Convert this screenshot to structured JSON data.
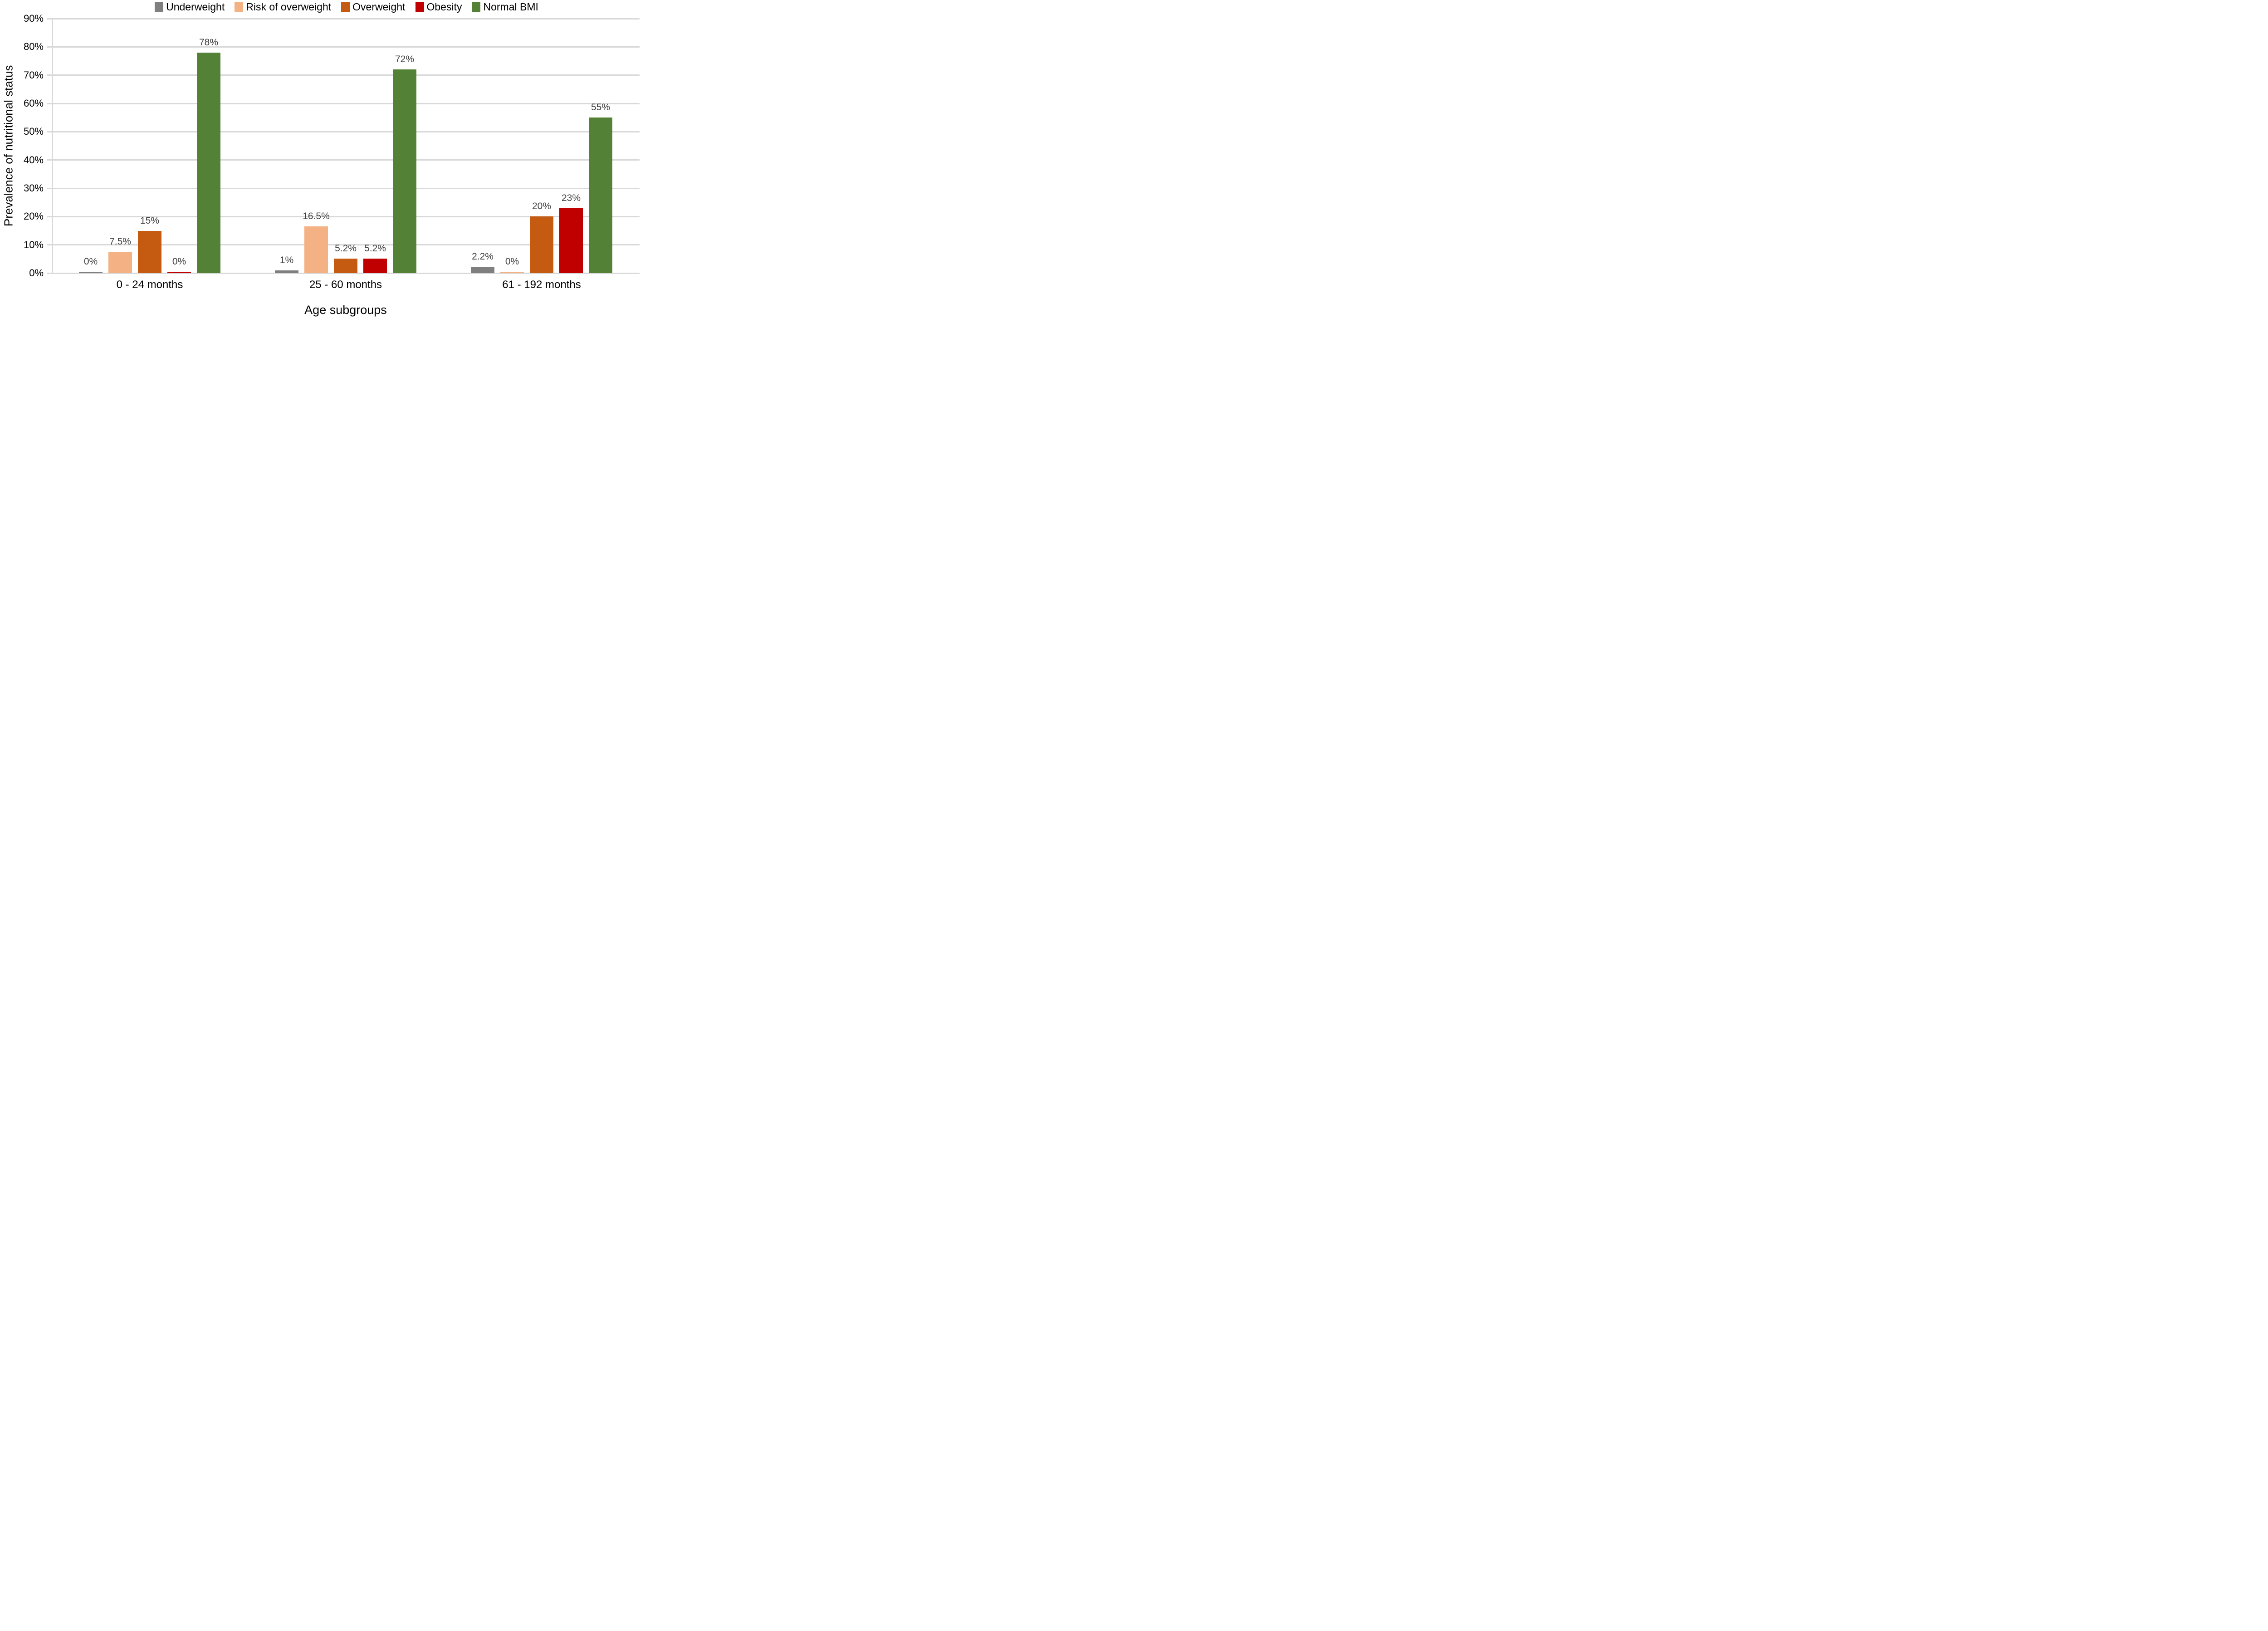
{
  "chart_data": {
    "type": "bar",
    "title": "",
    "xlabel": "Age subgroups",
    "ylabel": "Prevalence of nutritional status",
    "categories": [
      "0 - 24 months",
      "25 - 60 months",
      "61 - 192 months"
    ],
    "series": [
      {
        "name": "Underweight",
        "color": "#7f7f7f",
        "values": [
          0,
          1,
          2.2
        ],
        "labels": [
          "0%",
          "1%",
          "2.2%"
        ]
      },
      {
        "name": "Risk of overweight",
        "color": "#f4b183",
        "values": [
          7.5,
          16.5,
          0
        ],
        "labels": [
          "7.5%",
          "16.5%",
          "0%"
        ]
      },
      {
        "name": "Overweight",
        "color": "#c55a11",
        "values": [
          15,
          5.2,
          20
        ],
        "labels": [
          "15%",
          "5.2%",
          "20%"
        ]
      },
      {
        "name": "Obesity",
        "color": "#c00000",
        "values": [
          0,
          5.2,
          23
        ],
        "labels": [
          "0%",
          "5.2%",
          "23%"
        ]
      },
      {
        "name": "Normal BMI",
        "color": "#538135",
        "values": [
          78,
          72,
          55
        ],
        "labels": [
          "78%",
          "72%",
          "55%"
        ]
      }
    ],
    "y_ticks": [
      "90%",
      "80%",
      "70%",
      "60%",
      "50%",
      "40%",
      "30%",
      "20%",
      "10%",
      "0%"
    ],
    "ylim": [
      0,
      90
    ],
    "grid": true,
    "legend_position": "top"
  },
  "colors": {
    "gridline": "#d9d9d9",
    "axis_line": "#d9d9d9",
    "data_label": "#404040",
    "text": "#000000"
  }
}
